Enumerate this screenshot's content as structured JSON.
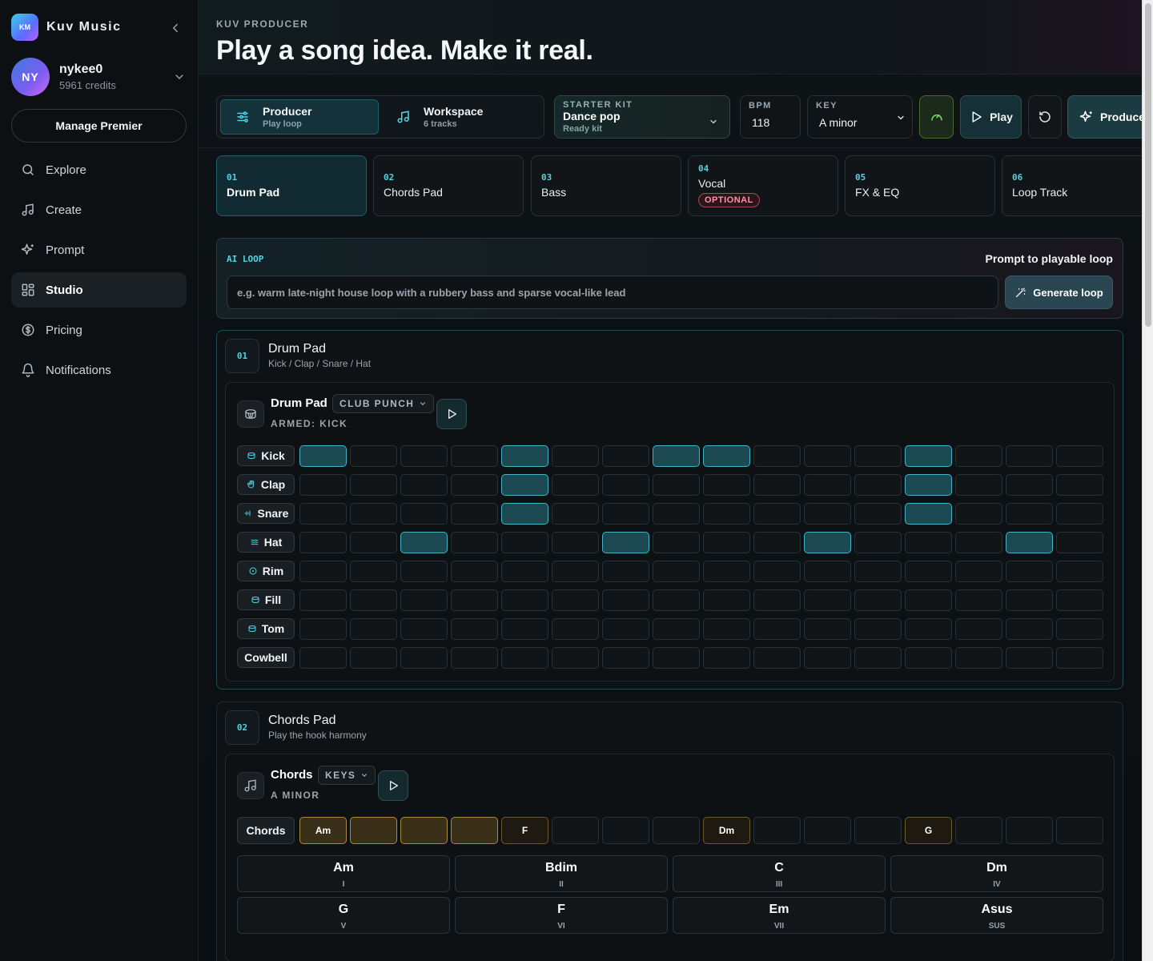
{
  "app": {
    "logo_text": "KM",
    "name": "Kuv Music"
  },
  "user": {
    "initials": "NY",
    "name": "nykee0",
    "credits": "5961 credits"
  },
  "sidebar": {
    "manage_label": "Manage Premier",
    "items": [
      {
        "label": "Explore",
        "icon": "search-icon"
      },
      {
        "label": "Create",
        "icon": "music-note-icon"
      },
      {
        "label": "Prompt",
        "icon": "sparkles-icon"
      },
      {
        "label": "Studio",
        "icon": "grid-icon",
        "active": true
      },
      {
        "label": "Pricing",
        "icon": "dollar-icon"
      },
      {
        "label": "Notifications",
        "icon": "bell-icon"
      }
    ]
  },
  "header": {
    "eyebrow": "KUV PRODUCER",
    "title": "Play a song idea. Make it real."
  },
  "toolbar": {
    "producer": {
      "label": "Producer",
      "sub": "Play loop"
    },
    "workspace": {
      "label": "Workspace",
      "sub": "6 tracks"
    },
    "kit": {
      "eyebrow": "STARTER KIT",
      "value": "Dance pop",
      "sub": "Ready kit"
    },
    "bpm": {
      "eyebrow": "BPM",
      "value": "118"
    },
    "key": {
      "eyebrow": "KEY",
      "value": "A minor"
    },
    "play_label": "Play",
    "produce_label": "Produce"
  },
  "steps": [
    {
      "num": "01",
      "label": "Drum Pad",
      "selected": true
    },
    {
      "num": "02",
      "label": "Chords Pad"
    },
    {
      "num": "03",
      "label": "Bass"
    },
    {
      "num": "04",
      "label": "Vocal",
      "badge": "OPTIONAL"
    },
    {
      "num": "05",
      "label": "FX & EQ"
    },
    {
      "num": "06",
      "label": "Loop Track"
    }
  ],
  "ai_loop": {
    "eyebrow": "AI LOOP",
    "right_label": "Prompt to playable loop",
    "placeholder": "e.g. warm late-night house loop with a rubbery bass and sparse vocal-like lead",
    "button": "Generate loop"
  },
  "drum_section": {
    "num": "01",
    "title": "Drum Pad",
    "subtitle": "Kick / Clap / Snare / Hat",
    "pad_title": "Drum Pad",
    "preset": "CLUB PUNCH",
    "armed": "ARMED: KICK",
    "rows": [
      {
        "label": "Kick",
        "icon": "drum-icon",
        "steps": [
          1,
          0,
          0,
          0,
          1,
          0,
          0,
          1,
          1,
          0,
          0,
          0,
          1,
          0,
          0,
          0
        ]
      },
      {
        "label": "Clap",
        "icon": "hand-icon",
        "steps": [
          0,
          0,
          0,
          0,
          1,
          0,
          0,
          0,
          0,
          0,
          0,
          0,
          1,
          0,
          0,
          0
        ]
      },
      {
        "label": "Snare",
        "icon": "wave-icon",
        "steps": [
          0,
          0,
          0,
          0,
          1,
          0,
          0,
          0,
          0,
          0,
          0,
          0,
          1,
          0,
          0,
          0
        ]
      },
      {
        "label": "Hat",
        "icon": "lines-icon",
        "steps": [
          0,
          0,
          1,
          0,
          0,
          0,
          1,
          0,
          0,
          0,
          1,
          0,
          0,
          0,
          1,
          0
        ]
      },
      {
        "label": "Rim",
        "icon": "circle-icon",
        "steps": [
          0,
          0,
          0,
          0,
          0,
          0,
          0,
          0,
          0,
          0,
          0,
          0,
          0,
          0,
          0,
          0
        ]
      },
      {
        "label": "Fill",
        "icon": "drum-icon",
        "steps": [
          0,
          0,
          0,
          0,
          0,
          0,
          0,
          0,
          0,
          0,
          0,
          0,
          0,
          0,
          0,
          0
        ]
      },
      {
        "label": "Tom",
        "icon": "drum-icon",
        "steps": [
          0,
          0,
          0,
          0,
          0,
          0,
          0,
          0,
          0,
          0,
          0,
          0,
          0,
          0,
          0,
          0
        ]
      },
      {
        "label": "Cowbell",
        "icon": "",
        "steps": [
          0,
          0,
          0,
          0,
          0,
          0,
          0,
          0,
          0,
          0,
          0,
          0,
          0,
          0,
          0,
          0
        ]
      }
    ]
  },
  "chords_section": {
    "num": "02",
    "title": "Chords Pad",
    "subtitle": "Play the hook harmony",
    "pad_title": "Chords",
    "preset": "KEYS",
    "key_label": "A MINOR",
    "row_label": "Chords",
    "sequence": [
      {
        "chord": "Am",
        "state": "on"
      },
      {
        "chord": "",
        "state": "on"
      },
      {
        "chord": "",
        "state": "on"
      },
      {
        "chord": "",
        "state": "on"
      },
      {
        "chord": "F",
        "state": "mark"
      },
      {
        "chord": "",
        "state": "off"
      },
      {
        "chord": "",
        "state": "off"
      },
      {
        "chord": "",
        "state": "off"
      },
      {
        "chord": "Dm",
        "state": "mark"
      },
      {
        "chord": "",
        "state": "off"
      },
      {
        "chord": "",
        "state": "off"
      },
      {
        "chord": "",
        "state": "off"
      },
      {
        "chord": "G",
        "state": "mark"
      },
      {
        "chord": "",
        "state": "off"
      },
      {
        "chord": "",
        "state": "off"
      },
      {
        "chord": "",
        "state": "off"
      }
    ],
    "palette": [
      {
        "name": "Am",
        "roman": "I"
      },
      {
        "name": "Bdim",
        "roman": "II"
      },
      {
        "name": "C",
        "roman": "III"
      },
      {
        "name": "Dm",
        "roman": "IV"
      },
      {
        "name": "G",
        "roman": "V"
      },
      {
        "name": "F",
        "roman": "VI"
      },
      {
        "name": "Em",
        "roman": "VII"
      },
      {
        "name": "Asus",
        "roman": "SUS"
      }
    ]
  }
}
